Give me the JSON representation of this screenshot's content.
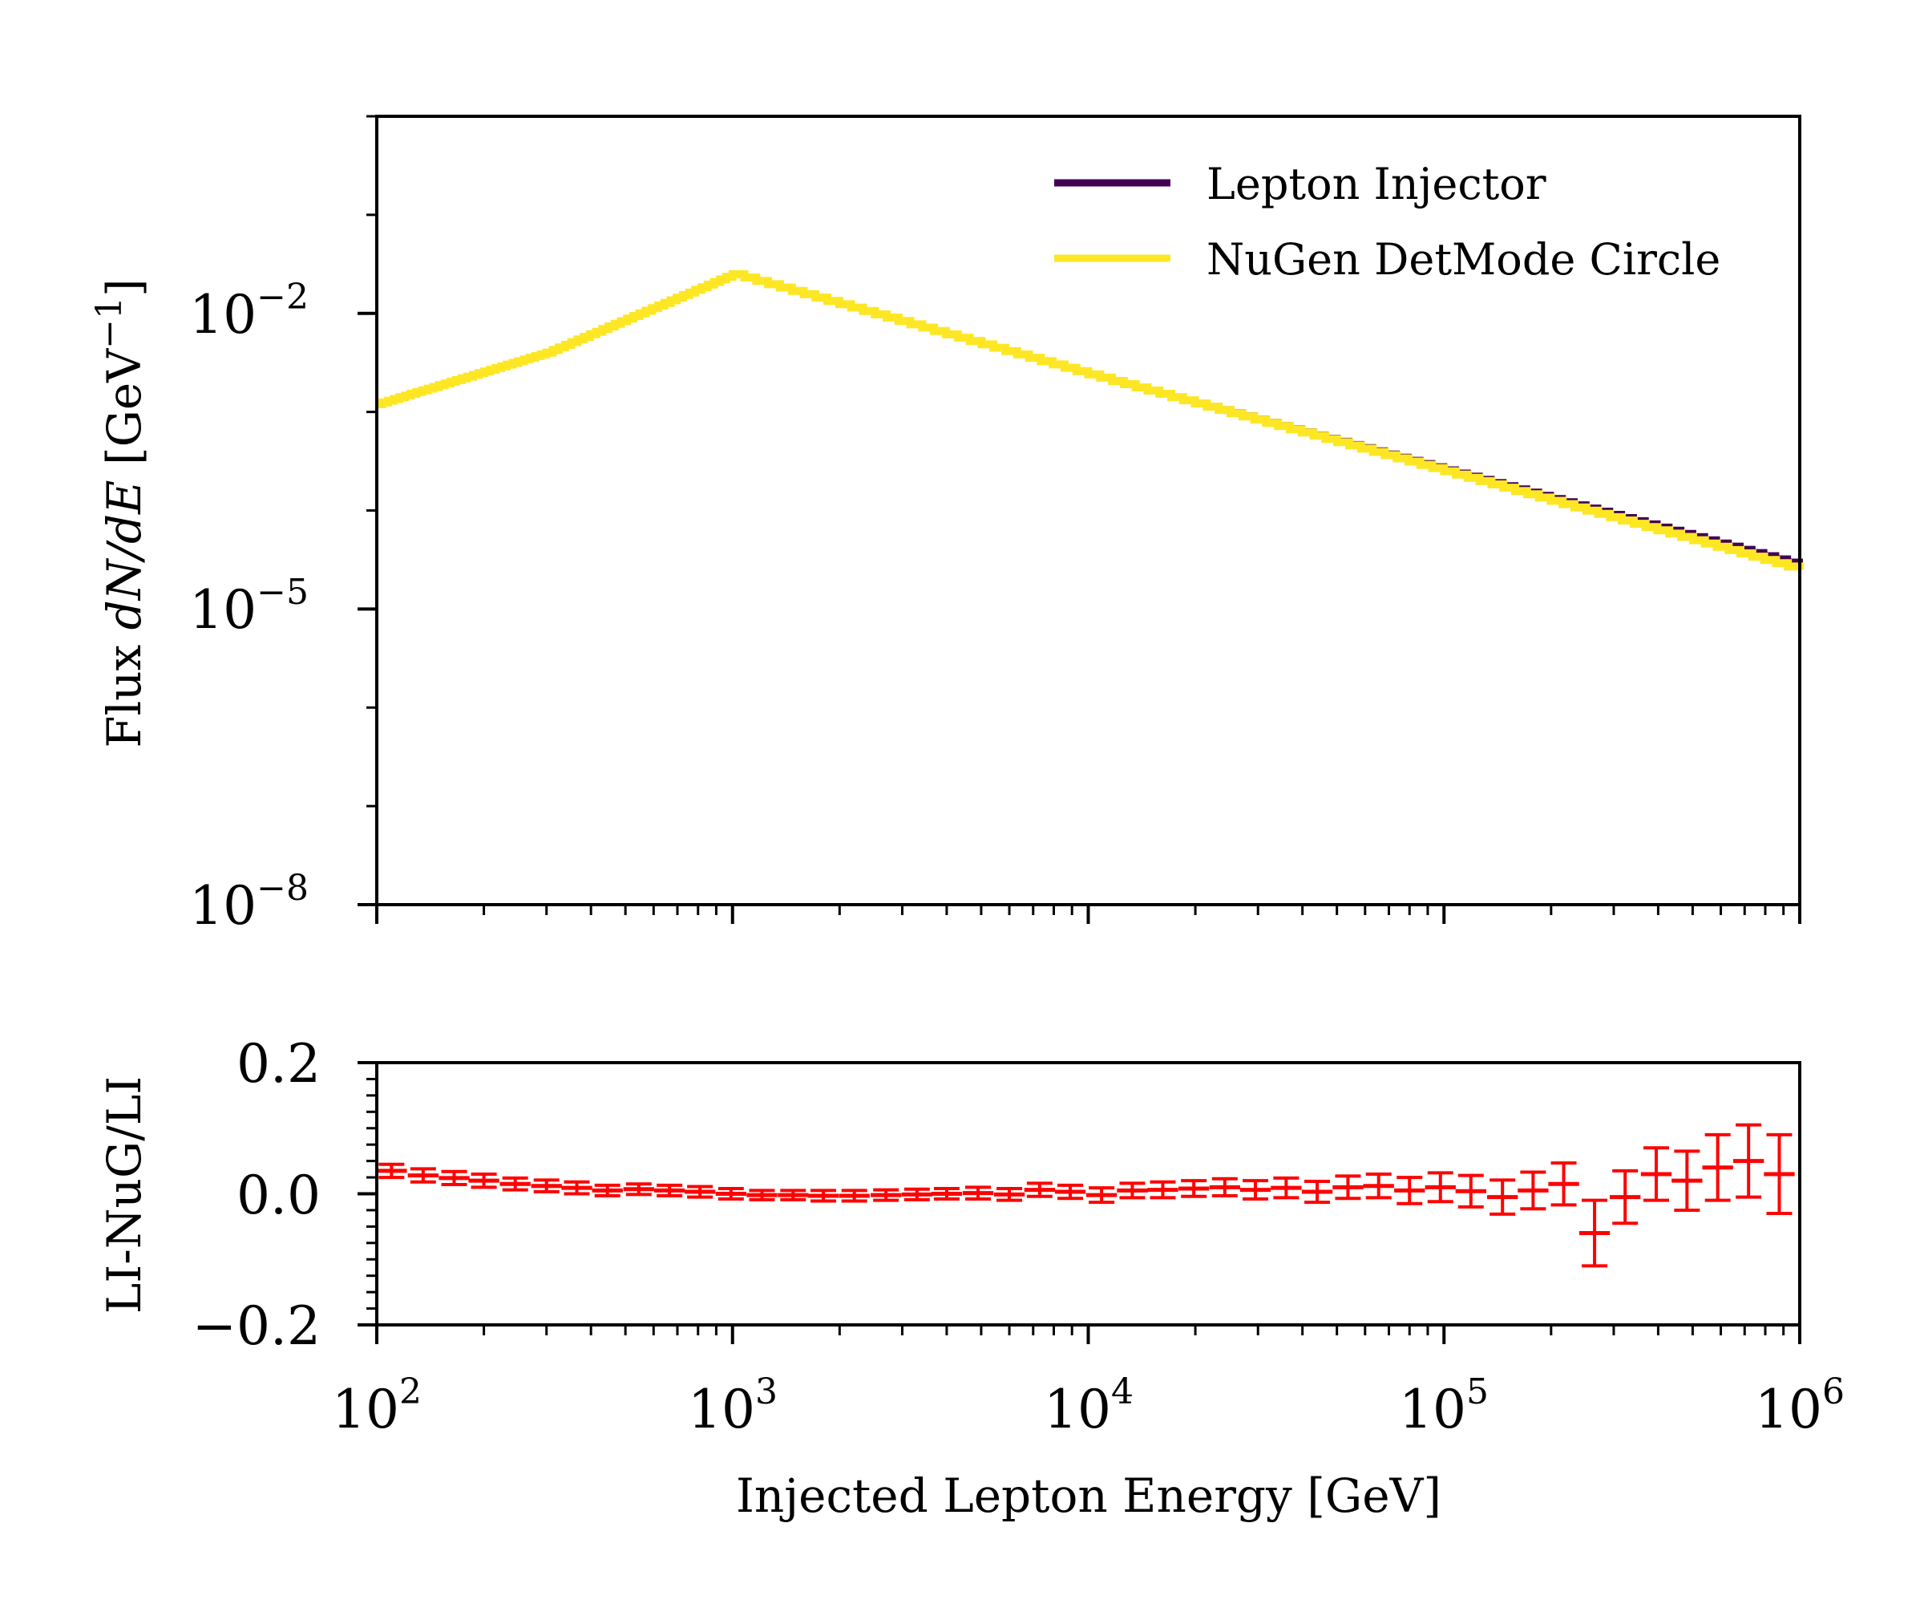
{
  "chart_data": [
    {
      "type": "line",
      "panel": "top",
      "xscale": "log",
      "yscale": "log",
      "xlim": [
        100,
        1000000
      ],
      "ylim": [
        1e-08,
        1
      ],
      "ylabel": "Flux dN/dE [GeV⁻¹]",
      "ylabel_parts": {
        "prefix": "Flux ",
        "math": "dN/dE",
        "unit_open": " [GeV",
        "unit_exp": "−1",
        "unit_close": "]"
      },
      "yticks": [
        {
          "value": 1e-08,
          "base": "10",
          "exp": "−8"
        },
        {
          "value": 1e-05,
          "base": "10",
          "exp": "−5"
        },
        {
          "value": 0.01,
          "base": "10",
          "exp": "−2"
        }
      ],
      "legend_position": "top-right",
      "series": [
        {
          "name": "Lepton Injector",
          "color": "#440154",
          "x": [
            100,
            300,
            1000,
            10000,
            100000,
            1000000
          ],
          "y": [
            0.0012,
            0.004,
            0.025,
            0.0024,
            0.00026,
            2.8e-05
          ]
        },
        {
          "name": "NuGen DetMode Circle",
          "color": "#fde725",
          "x": [
            100,
            300,
            1000,
            10000,
            100000,
            1000000
          ],
          "y": [
            0.0012,
            0.004,
            0.025,
            0.0024,
            0.00025,
            2.5e-05
          ]
        }
      ]
    },
    {
      "type": "scatter",
      "panel": "bottom",
      "xscale": "log",
      "xlim": [
        100,
        1000000
      ],
      "ylim": [
        -0.2,
        0.2
      ],
      "xlabel": "Injected Lepton Energy [GeV]",
      "ylabel": "LI-NuG/LI",
      "error_bar_color": "#ff0000",
      "yticks": [
        {
          "value": -0.2,
          "label": "−0.2"
        },
        {
          "value": 0.0,
          "label": "0.0"
        },
        {
          "value": 0.2,
          "label": "0.2"
        }
      ],
      "xticks": [
        {
          "value": 100,
          "base": "10",
          "exp": "2"
        },
        {
          "value": 1000,
          "base": "10",
          "exp": "3"
        },
        {
          "value": 10000,
          "base": "10",
          "exp": "4"
        },
        {
          "value": 100000,
          "base": "10",
          "exp": "5"
        },
        {
          "value": 1000000,
          "base": "10",
          "exp": "6"
        }
      ],
      "ratio_points": [
        {
          "x": 110,
          "y": 0.035,
          "err": 0.01
        },
        {
          "x": 135,
          "y": 0.028,
          "err": 0.01
        },
        {
          "x": 165,
          "y": 0.024,
          "err": 0.01
        },
        {
          "x": 200,
          "y": 0.02,
          "err": 0.01
        },
        {
          "x": 245,
          "y": 0.015,
          "err": 0.009
        },
        {
          "x": 300,
          "y": 0.012,
          "err": 0.009
        },
        {
          "x": 365,
          "y": 0.009,
          "err": 0.009
        },
        {
          "x": 445,
          "y": 0.005,
          "err": 0.008
        },
        {
          "x": 545,
          "y": 0.007,
          "err": 0.008
        },
        {
          "x": 665,
          "y": 0.005,
          "err": 0.008
        },
        {
          "x": 810,
          "y": 0.003,
          "err": 0.008
        },
        {
          "x": 990,
          "y": 0.0,
          "err": 0.008
        },
        {
          "x": 1210,
          "y": -0.002,
          "err": 0.007
        },
        {
          "x": 1480,
          "y": -0.002,
          "err": 0.007
        },
        {
          "x": 1800,
          "y": -0.003,
          "err": 0.008
        },
        {
          "x": 2200,
          "y": -0.003,
          "err": 0.008
        },
        {
          "x": 2700,
          "y": -0.002,
          "err": 0.008
        },
        {
          "x": 3300,
          "y": -0.001,
          "err": 0.008
        },
        {
          "x": 4000,
          "y": 0.0,
          "err": 0.008
        },
        {
          "x": 4900,
          "y": 0.001,
          "err": 0.009
        },
        {
          "x": 6000,
          "y": -0.001,
          "err": 0.009
        },
        {
          "x": 7300,
          "y": 0.006,
          "err": 0.01
        },
        {
          "x": 8900,
          "y": 0.003,
          "err": 0.01
        },
        {
          "x": 10900,
          "y": -0.002,
          "err": 0.011
        },
        {
          "x": 13300,
          "y": 0.005,
          "err": 0.011
        },
        {
          "x": 16200,
          "y": 0.006,
          "err": 0.012
        },
        {
          "x": 19800,
          "y": 0.008,
          "err": 0.012
        },
        {
          "x": 24200,
          "y": 0.01,
          "err": 0.013
        },
        {
          "x": 29500,
          "y": 0.006,
          "err": 0.014
        },
        {
          "x": 36000,
          "y": 0.009,
          "err": 0.015
        },
        {
          "x": 44000,
          "y": 0.003,
          "err": 0.016
        },
        {
          "x": 53700,
          "y": 0.01,
          "err": 0.017
        },
        {
          "x": 65500,
          "y": 0.012,
          "err": 0.018
        },
        {
          "x": 80000,
          "y": 0.005,
          "err": 0.02
        },
        {
          "x": 97700,
          "y": 0.01,
          "err": 0.022
        },
        {
          "x": 119000,
          "y": 0.004,
          "err": 0.024
        },
        {
          "x": 146000,
          "y": -0.005,
          "err": 0.026
        },
        {
          "x": 178000,
          "y": 0.005,
          "err": 0.028
        },
        {
          "x": 217000,
          "y": 0.015,
          "err": 0.032
        },
        {
          "x": 265000,
          "y": -0.06,
          "err": 0.05
        },
        {
          "x": 323000,
          "y": -0.005,
          "err": 0.04
        },
        {
          "x": 395000,
          "y": 0.03,
          "err": 0.04
        },
        {
          "x": 482000,
          "y": 0.02,
          "err": 0.045
        },
        {
          "x": 588000,
          "y": 0.04,
          "err": 0.05
        },
        {
          "x": 718000,
          "y": 0.05,
          "err": 0.055
        },
        {
          "x": 876000,
          "y": 0.03,
          "err": 0.06
        }
      ]
    }
  ]
}
